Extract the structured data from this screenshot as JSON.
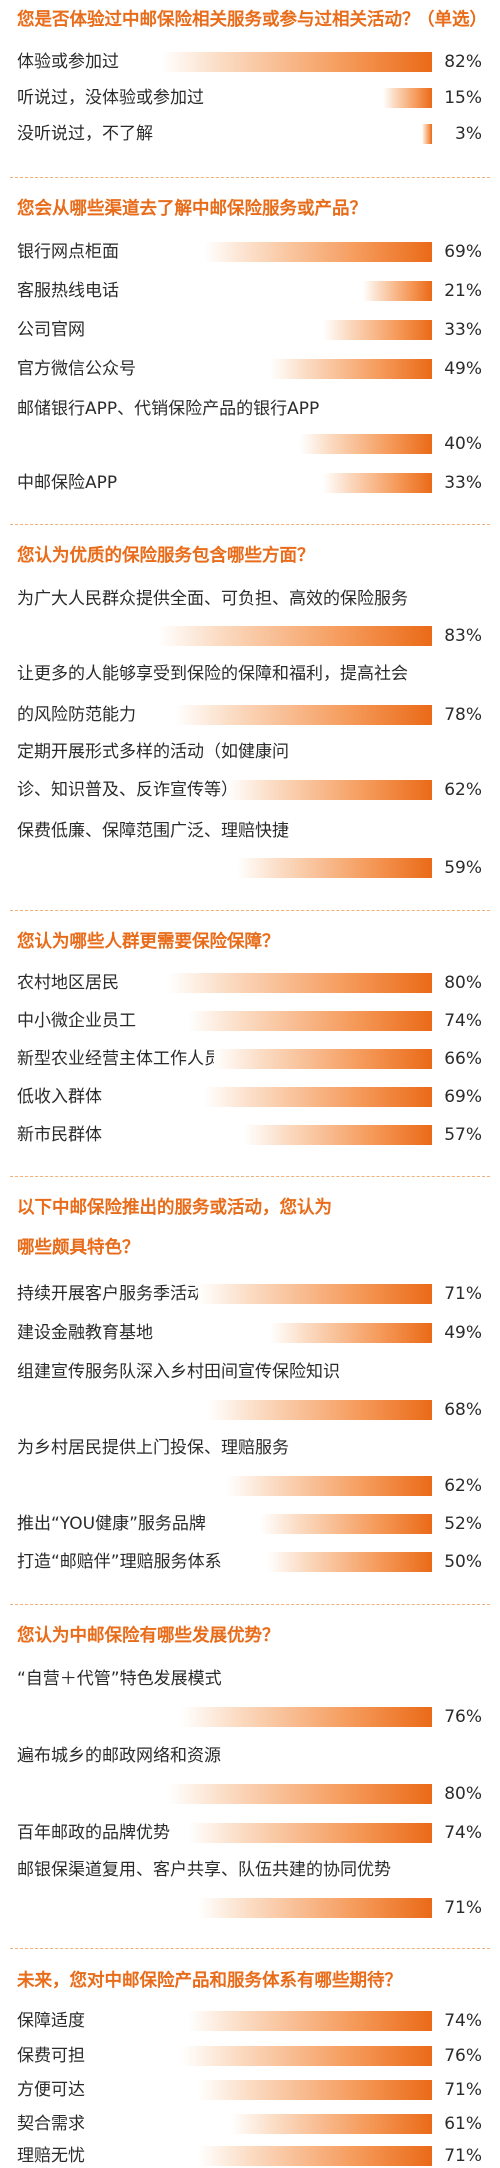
{
  "colors": {
    "accent": "#e86c1a",
    "bar_start": "#fbdcc4",
    "bar_end": "#ea6a18",
    "text": "#2b2b2b"
  },
  "chart_data": [
    {
      "type": "bar",
      "title": "您是否体验过中邮保险相关服务或参与过相关活动？",
      "title_suffix": "（单选）",
      "categories": [
        "体验或参加过",
        "听说过，没体验或参加过",
        "没听说过，不了解"
      ],
      "values": [
        82,
        15,
        3
      ],
      "value_labels": [
        "82%",
        "15%",
        "3%"
      ]
    },
    {
      "type": "bar",
      "title": "您会从哪些渠道去了解中邮保险服务或产品？",
      "categories": [
        "银行网点柜面",
        "客服热线电话",
        "公司官网",
        "官方微信公众号",
        "邮储银行APP、代销保险产品的银行APP",
        "中邮保险APP"
      ],
      "values": [
        69,
        21,
        33,
        49,
        40,
        33
      ],
      "value_labels": [
        "69%",
        "21%",
        "33%",
        "49%",
        "40%",
        "33%"
      ]
    },
    {
      "type": "bar",
      "title": "您认为优质的保险服务包含哪些方面？",
      "categories": [
        "为广大人民群众提供全面、可负担、高效的保险服务",
        "让更多的人能够享受到保险的保障和福利，提高社会的风险防范能力",
        "定期开展形式多样的活动（如健康问诊、知识普及、反诈宣传等）",
        "保费低廉、保障范围广泛、理赔快捷"
      ],
      "values": [
        83,
        78,
        62,
        59
      ],
      "value_labels": [
        "83%",
        "78%",
        "62%",
        "59%"
      ]
    },
    {
      "type": "bar",
      "title": "您认为哪些人群更需要保险保障？",
      "categories": [
        "农村地区居民",
        "中小微企业员工",
        "新型农业经营主体工作人员",
        "低收入群体",
        "新市民群体"
      ],
      "values": [
        80,
        74,
        66,
        69,
        57
      ],
      "value_labels": [
        "80%",
        "74%",
        "66%",
        "69%",
        "57%"
      ]
    },
    {
      "type": "bar",
      "title": "以下中邮保险推出的服务或活动，您认为哪些颇具特色？",
      "categories": [
        "持续开展客户服务季活动",
        "建设金融教育基地",
        "组建宣传服务队深入乡村田间宣传保险知识",
        "为乡村居民提供上门投保、理赔服务",
        "推出“YOU健康”服务品牌",
        "打造“邮赔伴”理赔服务体系"
      ],
      "values": [
        71,
        49,
        68,
        62,
        52,
        50
      ],
      "value_labels": [
        "71%",
        "49%",
        "68%",
        "62%",
        "52%",
        "50%"
      ]
    },
    {
      "type": "bar",
      "title": "您认为中邮保险有哪些发展优势？",
      "categories": [
        "“自营＋代管”特色发展模式",
        "遍布城乡的邮政网络和资源",
        "百年邮政的品牌优势",
        "邮银保渠道复用、客户共享、队伍共建的协同优势"
      ],
      "values": [
        76,
        80,
        74,
        71
      ],
      "value_labels": [
        "76%",
        "80%",
        "74%",
        "71%"
      ]
    },
    {
      "type": "bar",
      "title": "未来，您对中邮保险产品和服务体系有哪些期待？",
      "categories": [
        "保障适度",
        "保费可担",
        "方便可达",
        "契合需求",
        "理赔无忧"
      ],
      "values": [
        74,
        76,
        71,
        61,
        71
      ],
      "value_labels": [
        "74%",
        "76%",
        "71%",
        "61%",
        "71%"
      ]
    }
  ]
}
